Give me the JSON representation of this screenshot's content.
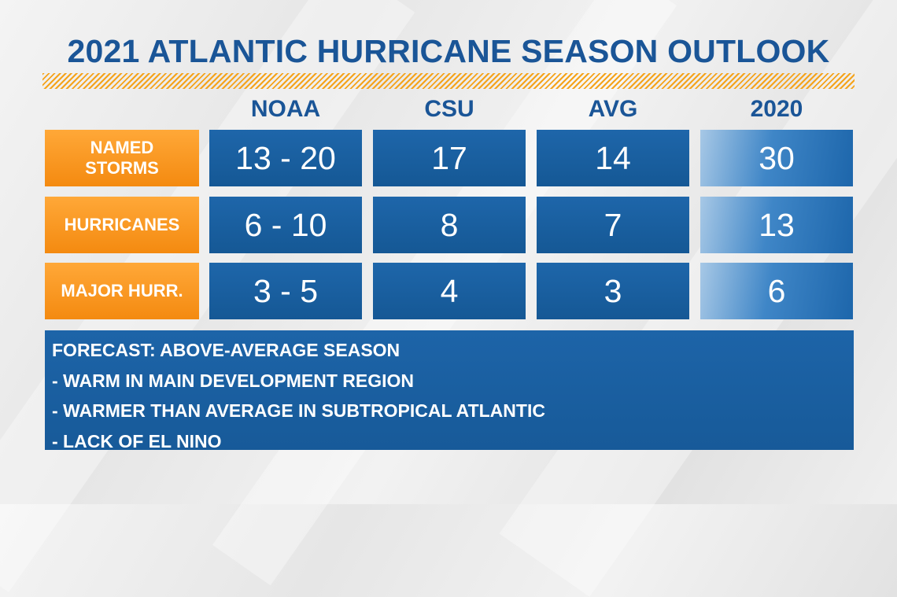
{
  "title": "2021 ATLANTIC HURRICANE SEASON OUTLOOK",
  "columns": [
    "NOAA",
    "CSU",
    "AVG",
    "2020"
  ],
  "rows": [
    {
      "label": "NAMED\nSTORMS",
      "values": [
        "13 - 20",
        "17",
        "14",
        "30"
      ]
    },
    {
      "label": "HURRICANES",
      "values": [
        "6 - 10",
        "8",
        "7",
        "13"
      ]
    },
    {
      "label": "MAJOR HURR.",
      "values": [
        "3 - 5",
        "4",
        "3",
        "6"
      ]
    }
  ],
  "notes": {
    "heading": "FORECAST: ABOVE-AVERAGE SEASON",
    "items": [
      "- WARM IN MAIN DEVELOPMENT REGION",
      "- WARMER THAN AVERAGE IN SUBTROPICAL ATLANTIC",
      "- LACK OF EL NINO"
    ]
  },
  "colors": {
    "title": "#1a5597",
    "accent_orange": "#f48a10",
    "cell_blue": "#1b61a3"
  }
}
